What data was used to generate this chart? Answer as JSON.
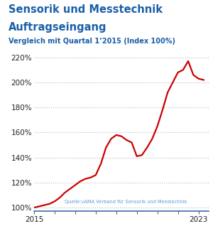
{
  "title_line1": "Sensorik und Messtechnik",
  "title_line2": "Auftragseingang",
  "subtitle": "Vergleich mit Quartal 1’2015 (Index 100%)",
  "source": "Quelle:vAMA Verband für Sensorik und Messtechnik",
  "title_color": "#1a5fa8",
  "subtitle_color": "#1a5fa8",
  "source_color": "#5b9bd5",
  "line_color": "#cc0000",
  "grid_color": "#bbbbbb",
  "axis_color": "#3a6ea8",
  "background_color": "#ffffff",
  "xlim": [
    2015.0,
    2023.5
  ],
  "ylim": [
    97,
    228
  ],
  "yticks": [
    100,
    120,
    140,
    160,
    180,
    200,
    220
  ],
  "xtick_years": [
    2015,
    2016,
    2017,
    2018,
    2019,
    2020,
    2021,
    2022,
    2023
  ],
  "x": [
    2015.0,
    2015.25,
    2015.5,
    2015.75,
    2016.0,
    2016.25,
    2016.5,
    2016.75,
    2017.0,
    2017.25,
    2017.5,
    2017.75,
    2018.0,
    2018.25,
    2018.5,
    2018.75,
    2019.0,
    2019.25,
    2019.5,
    2019.75,
    2020.0,
    2020.25,
    2020.5,
    2020.75,
    2021.0,
    2021.25,
    2021.5,
    2021.75,
    2022.0,
    2022.25,
    2022.5,
    2022.75,
    2023.0,
    2023.25
  ],
  "y": [
    100,
    101,
    102,
    103,
    105,
    108,
    112,
    115,
    118,
    121,
    123,
    124,
    126,
    135,
    148,
    155,
    158,
    157,
    154,
    152,
    141,
    142,
    148,
    155,
    165,
    178,
    192,
    200,
    208,
    210,
    217,
    206,
    203,
    202
  ],
  "title_fontsize": 10.5,
  "subtitle_fontsize": 7.0,
  "tick_label_fontsize": 7.5
}
